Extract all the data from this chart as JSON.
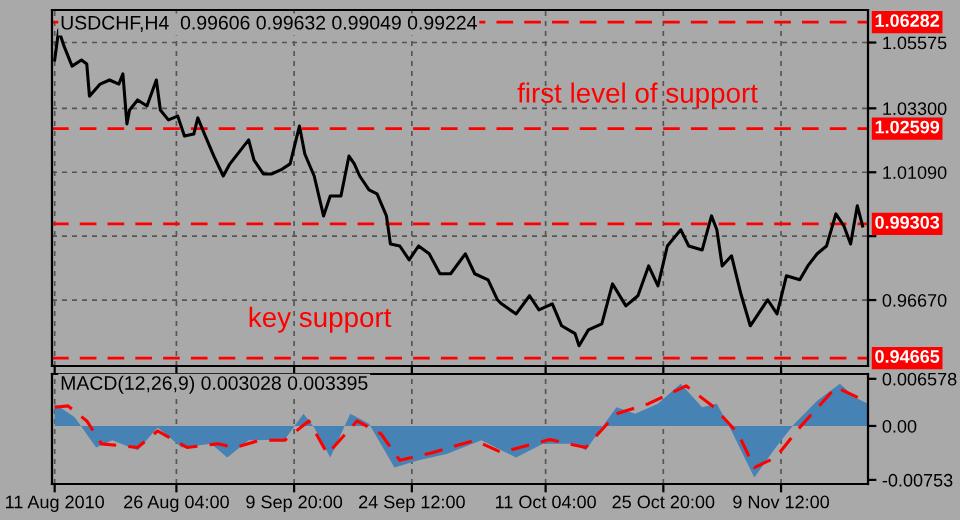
{
  "chart_data": [
    {
      "type": "line",
      "title": "USDCHF,H4  0.99606 0.99632 0.99049 0.99224",
      "x": [
        "2010-08-11T00:00",
        "2010-08-11T12:00",
        "2010-08-12T04:00",
        "2010-08-13T04:00",
        "2010-08-14T08:00",
        "2010-08-15T00:00",
        "2010-08-15T08:00",
        "2010-08-16T16:00",
        "2010-08-17T20:00",
        "2010-08-19T00:00",
        "2010-08-19T12:00",
        "2010-08-20T00:00",
        "2010-08-20T08:00",
        "2010-08-21T08:00",
        "2010-08-22T12:00",
        "2010-08-23T16:00",
        "2010-08-24T04:00",
        "2010-08-25T04:00",
        "2010-08-26T08:00",
        "2010-08-27T04:00",
        "2010-08-28T08:00",
        "2010-08-28T20:00",
        "2010-08-29T16:00",
        "2010-08-30T20:00",
        "2010-09-01T00:00",
        "2010-09-01T20:00",
        "2010-09-04T04:00",
        "2010-09-04T20:00",
        "2010-09-06T00:00",
        "2010-09-07T00:00",
        "2010-09-08T04:00",
        "2010-09-09T08:00",
        "2010-09-10T12:00",
        "2010-09-11T04:00",
        "2010-09-12T08:00",
        "2010-09-13T12:00",
        "2010-09-14T08:00",
        "2010-09-15T16:00",
        "2010-09-16T16:00",
        "2010-09-17T08:00",
        "2010-09-18T00:00",
        "2010-09-19T04:00",
        "2010-09-20T04:00",
        "2010-09-21T08:00",
        "2010-09-21T20:00",
        "2010-09-23T00:00",
        "2010-09-24T04:00",
        "2010-09-25T08:00",
        "2010-09-26T16:00",
        "2010-09-28T00:00",
        "2010-09-29T08:00",
        "2010-10-01T04:00",
        "2010-10-02T08:00",
        "2010-10-04T00:00",
        "2010-10-05T04:00",
        "2010-10-05T16:00",
        "2010-10-07T12:00",
        "2010-10-09T04:00",
        "2010-10-10T08:00",
        "2010-10-12T00:00",
        "2010-10-13T04:00",
        "2010-10-14T20:00",
        "2010-10-15T08:00",
        "2010-10-16T12:00",
        "2010-10-18T04:00",
        "2010-10-19T12:00",
        "2010-10-21T04:00",
        "2010-10-22T16:00",
        "2010-10-24T00:00",
        "2010-10-25T04:00",
        "2010-10-26T08:00",
        "2010-10-28T00:00",
        "2010-10-29T00:00",
        "2010-10-30T16:00",
        "2010-10-31T20:00",
        "2010-11-01T12:00",
        "2010-11-02T04:00",
        "2010-11-03T08:00",
        "2010-11-04T12:00",
        "2010-11-05T16:00",
        "2010-11-06T16:00",
        "2010-11-07T20:00",
        "2010-11-09T00:00",
        "2010-11-10T04:00",
        "2010-11-11T20:00",
        "2010-11-12T20:00",
        "2010-11-14T00:00",
        "2010-11-15T04:00",
        "2010-11-16T08:00",
        "2010-11-17T08:00",
        "2010-11-18T04:00",
        "2010-11-19T00:00",
        "2010-11-19T16:00"
      ],
      "series": [
        {
          "color": "#000000",
          "values": [
            1.0497,
            1.0601,
            1.0545,
            1.0476,
            1.0497,
            1.0483,
            1.0372,
            1.0414,
            1.0428,
            1.0414,
            1.0449,
            1.0276,
            1.0324,
            1.0359,
            1.0338,
            1.0428,
            1.0324,
            1.029,
            1.0303,
            1.0234,
            1.0241,
            1.0297,
            1.0241,
            1.0165,
            1.0096,
            1.0138,
            1.0221,
            1.0151,
            1.0103,
            1.0103,
            1.0117,
            1.0138,
            1.0269,
            1.0172,
            1.0096,
            0.9958,
            1.0027,
            1.0027,
            1.0165,
            1.0138,
            1.0096,
            1.0048,
            1.0034,
            0.9958,
            0.9861,
            0.9854,
            0.9806,
            0.9854,
            0.9827,
            0.9758,
            0.9758,
            0.9827,
            0.9758,
            0.9737,
            0.9668,
            0.9654,
            0.9619,
            0.9682,
            0.9633,
            0.9654,
            0.9578,
            0.9551,
            0.9509,
            0.9564,
            0.9585,
            0.9723,
            0.9647,
            0.9682,
            0.9785,
            0.9716,
            0.9854,
            0.991,
            0.9854,
            0.984,
            0.9958,
            0.991,
            0.9785,
            0.982,
            0.9688,
            0.9578,
            0.9619,
            0.9668,
            0.9619,
            0.9751,
            0.9737,
            0.9785,
            0.9827,
            0.9854,
            0.9965,
            0.9923,
            0.9861,
            0.9993,
            0.9923
          ]
        }
      ],
      "xlim": [
        "2010-08-10T16:00",
        "2010-11-20T08:00"
      ],
      "ylim": [
        0.9439,
        1.067
      ],
      "xticks": [
        "2010-08-11T00:00",
        "2010-08-26T04:00",
        "2010-09-09T20:00",
        "2010-09-24T12:00",
        "2010-10-11T04:00",
        "2010-10-25T20:00",
        "2010-11-09T12:00"
      ],
      "yticks": [
        {
          "value": 1.05575,
          "label": "1.05575"
        },
        {
          "value": 1.033,
          "label": "1.03300"
        },
        {
          "value": 1.0109,
          "label": "1.01090"
        },
        {
          "value": 0.9888,
          "label": null
        },
        {
          "value": 0.9667,
          "label": "0.96670"
        }
      ],
      "ref_lines": [
        {
          "axis": "y",
          "value": 1.06282,
          "label": "1.06282",
          "color": "#ff0000",
          "line_style": "dashed"
        },
        {
          "axis": "y",
          "value": 1.02599,
          "label": "1.02599",
          "color": "#ff0000",
          "line_style": "dashed"
        },
        {
          "axis": "y",
          "value": 0.99303,
          "label": "0.99303",
          "color": "#ff0000",
          "line_style": "dashed"
        },
        {
          "axis": "y",
          "value": 0.94665,
          "label": "0.94665",
          "color": "#ff0000",
          "line_style": "dashed"
        }
      ],
      "annotations": [
        "first level of support",
        "key support"
      ],
      "grid": true,
      "tick_labels": "y"
    },
    {
      "type": "line",
      "title": "MACD(12,26,9) 0.003028 0.003395",
      "series": [
        {
          "type": "area",
          "color": "#4682b4",
          "x": [
            "2010-08-11T00:00",
            "2010-08-13T12:00",
            "2010-08-16T04:00",
            "2010-08-18T04:00",
            "2010-08-21T08:00",
            "2010-08-23T20:00",
            "2010-08-26T20:00",
            "2010-08-30T12:00",
            "2010-09-01T12:00",
            "2010-09-04T04:00",
            "2010-09-08T16:00",
            "2010-09-11T00:00",
            "2010-09-12T08:00",
            "2010-09-14T08:00",
            "2010-09-16T20:00",
            "2010-09-19T04:00",
            "2010-09-22T08:00",
            "2010-09-25T08:00",
            "2010-09-28T20:00",
            "2010-10-03T04:00",
            "2010-10-07T12:00",
            "2010-10-10T20:00",
            "2010-10-14T20:00",
            "2010-10-16T04:00",
            "2010-10-18T12:00",
            "2010-10-20T00:00",
            "2010-10-22T08:00",
            "2010-10-25T04:00",
            "2010-10-28T00:00",
            "2010-10-30T16:00",
            "2010-11-01T12:00",
            "2010-11-03T08:00",
            "2010-11-06T04:00",
            "2010-11-08T20:00",
            "2010-11-11T04:00",
            "2010-11-14T00:00",
            "2010-11-16T20:00",
            "2010-11-18T16:00",
            "2010-11-20T08:00"
          ],
          "values": [
            0.0031,
            0.0012,
            -0.003,
            -0.002,
            -0.0034,
            -0.0002,
            -0.003,
            -0.0025,
            -0.0044,
            -0.002,
            -0.0019,
            0.0017,
            -0.0002,
            -0.0044,
            0.0017,
            0.0003,
            -0.0058,
            -0.0048,
            -0.0039,
            -0.002,
            -0.0044,
            -0.0025,
            -0.0025,
            -0.0034,
            0.0003,
            0.0026,
            0.0017,
            0.0031,
            0.0059,
            0.0026,
            0.0031,
            -0.0007,
            -0.0072,
            -0.003,
            0.0003,
            0.0035,
            0.0059,
            0.004,
            0.0031
          ]
        },
        {
          "type": "line",
          "color": "#ff0000",
          "line_style": "dashed",
          "x": [
            "2010-08-11T00:00",
            "2010-08-12T16:00",
            "2010-08-15T00:00",
            "2010-08-16T20:00",
            "2010-08-21T08:00",
            "2010-08-23T20:00",
            "2010-08-27T12:00",
            "2010-08-31T08:00",
            "2010-09-02T12:00",
            "2010-09-05T12:00",
            "2010-09-08T16:00",
            "2010-09-11T16:00",
            "2010-09-14T00:00",
            "2010-09-17T16:00",
            "2010-09-20T16:00",
            "2010-09-23T00:00",
            "2010-09-27T04:00",
            "2010-10-02T08:00",
            "2010-10-05T16:00",
            "2010-10-11T16:00",
            "2010-10-16T04:00",
            "2010-10-20T00:00",
            "2010-10-24T00:00",
            "2010-10-28T16:00",
            "2010-11-01T04:00",
            "2010-11-04T04:00",
            "2010-11-06T04:00",
            "2010-11-08T20:00",
            "2010-11-11T20:00",
            "2010-11-16T08:00",
            "2010-11-20T08:00"
          ],
          "values": [
            0.0026,
            0.0028,
            0.0007,
            -0.0025,
            -0.003,
            -0.0007,
            -0.003,
            -0.0025,
            -0.003,
            -0.002,
            -0.002,
            0.0007,
            -0.0039,
            0.0007,
            -0.0011,
            -0.0048,
            -0.0037,
            -0.002,
            -0.0037,
            -0.0019,
            -0.003,
            0.0017,
            0.0031,
            0.0056,
            0.0026,
            -0.0011,
            -0.0058,
            -0.0044,
            -0.0002,
            0.0054,
            0.0033
          ]
        }
      ],
      "xlim": [
        "2010-08-10T16:00",
        "2010-11-20T08:00"
      ],
      "ylim": [
        -0.0081,
        0.00725
      ],
      "xticks": [
        {
          "value": "2010-08-11T00:00",
          "label": "11 Aug 2010"
        },
        {
          "value": "2010-08-26T04:00",
          "label": "26 Aug 04:00"
        },
        {
          "value": "2010-09-09T20:00",
          "label": "9 Sep 20:00"
        },
        {
          "value": "2010-09-24T12:00",
          "label": "24 Sep 12:00"
        },
        {
          "value": "2010-10-11T04:00",
          "label": "11 Oct 04:00"
        },
        {
          "value": "2010-10-25T20:00",
          "label": "25 Oct 20:00"
        },
        {
          "value": "2010-11-09T12:00",
          "label": "9 Nov 12:00"
        }
      ],
      "yticks": [
        {
          "value": 0.006578,
          "label": "0.006578"
        },
        {
          "value": 0,
          "label": "0.00"
        },
        -0.00753
      ],
      "grid": "x"
    }
  ]
}
